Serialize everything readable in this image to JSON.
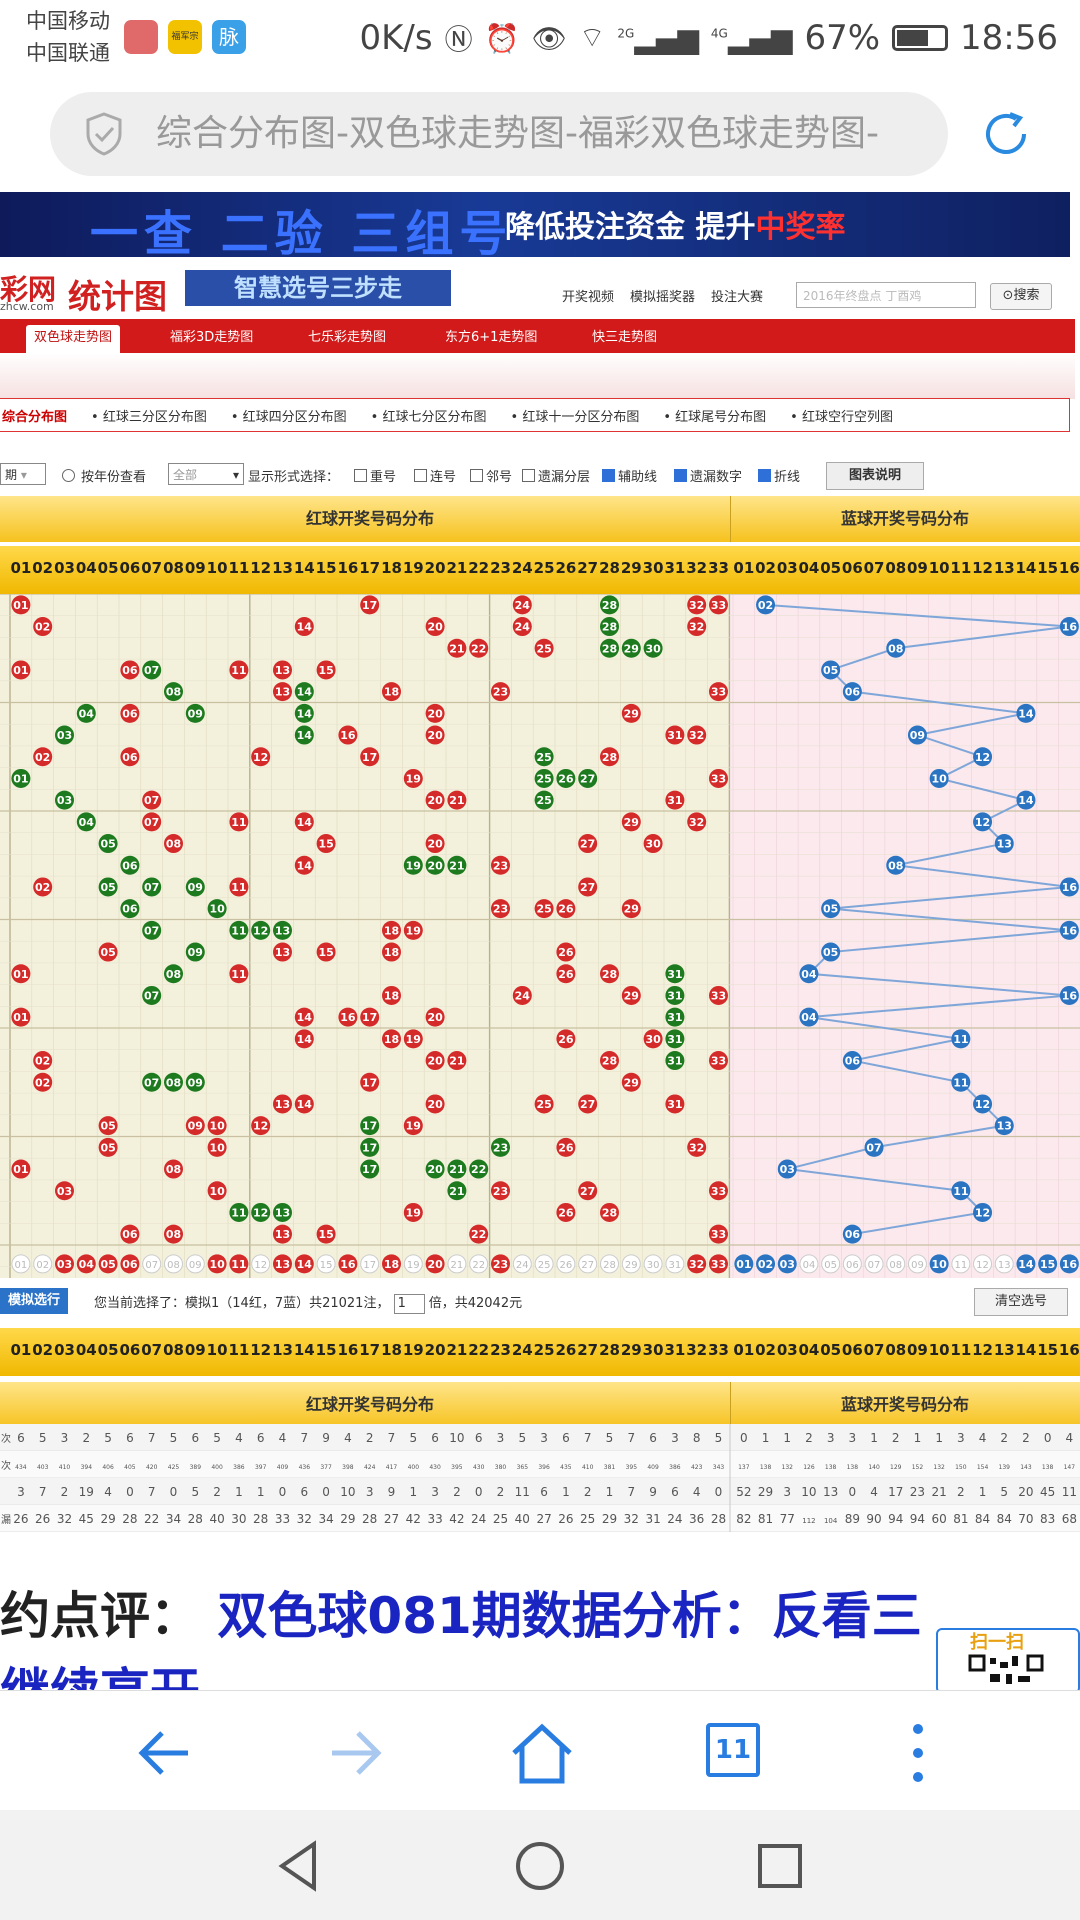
{
  "status_bar": {
    "carrier1": "中国移动",
    "carrier2": "中国联通",
    "app_icon_2": "福军宗",
    "app_icon_3": "脉",
    "speed": "0K/s",
    "icons": [
      "nfc-icon",
      "alarm-icon",
      "eye-icon",
      "wifi-icon",
      "signal-2g-icon",
      "signal-4g-icon"
    ],
    "net_2g": "2G",
    "net_4g": "4G",
    "battery": "67%",
    "battery_level": 0.67,
    "time": "18:56"
  },
  "browser": {
    "url_title": "综合分布图-双色球走势图-福彩双色球走势图-",
    "tab_count": "11"
  },
  "banner": {
    "headline": "一查 二验 三组号",
    "slogan": "降低投注资金 提升",
    "slogan_highlight": "中奖率"
  },
  "site": {
    "logo_main": "彩网",
    "logo_url": "zhcw.com",
    "logo_section": "统计图",
    "ad_text": "智慧选号三步走",
    "top_links": [
      "开奖视频",
      "模拟摇奖器",
      "投注大赛"
    ],
    "search_placeholder": "2016年终盘点 丁酉鸡",
    "search_button": "搜索"
  },
  "nav_tabs": [
    "双色球走势图",
    "福彩3D走势图",
    "七乐彩走势图",
    "东方6+1走势图",
    "快三走势图"
  ],
  "sub_nav": [
    "综合分布图",
    "红球三分区分布图",
    "红球四分区分布图",
    "红球七分区分布图",
    "红球十一分区分布图",
    "红球尾号分布图",
    "红球空行空列图"
  ],
  "filters": {
    "period": "期",
    "by_year": "按年份查看",
    "year_select": "全部",
    "display_label": "显示形式选择：",
    "options": [
      {
        "label": "重号",
        "checked": false
      },
      {
        "label": "连号",
        "checked": false
      },
      {
        "label": "邻号",
        "checked": false
      },
      {
        "label": "遗漏分层",
        "checked": false
      },
      {
        "label": "辅助线",
        "checked": true
      },
      {
        "label": "遗漏数字",
        "checked": true
      },
      {
        "label": "折线",
        "checked": true
      }
    ],
    "chart_button": "图表说明"
  },
  "headers": {
    "red_title": "红球开奖号码分布",
    "blue_title": "蓝球开奖号码分布"
  },
  "red_numbers": [
    "01",
    "02",
    "03",
    "04",
    "05",
    "06",
    "07",
    "08",
    "09",
    "10",
    "11",
    "12",
    "13",
    "14",
    "15",
    "16",
    "17",
    "18",
    "19",
    "20",
    "21",
    "22",
    "23",
    "24",
    "25",
    "26",
    "27",
    "28",
    "29",
    "30",
    "31",
    "32",
    "33"
  ],
  "blue_numbers": [
    "01",
    "02",
    "03",
    "04",
    "05",
    "06",
    "07",
    "08",
    "09",
    "10",
    "11",
    "12",
    "13",
    "14",
    "15",
    "16"
  ],
  "colors": {
    "red_ball": "#d42a2a",
    "green_ball": "#1e7a1e",
    "blue_ball": "#2a74c2",
    "red_zone_bg": "#f3f1dc",
    "blue_zone_bg": "#fbe9ee",
    "line": "#7fa6d8"
  },
  "draws": [
    {
      "red": [
        1,
        17,
        24,
        28,
        32,
        33
      ],
      "green": [
        28
      ],
      "blue": 2
    },
    {
      "red": [
        2,
        14,
        20,
        24,
        28,
        32
      ],
      "green": [
        28
      ],
      "blue": 16
    },
    {
      "red": [
        21,
        22,
        25,
        28,
        29,
        30
      ],
      "green": [
        28,
        29,
        30
      ],
      "blue": 8
    },
    {
      "red": [
        1,
        6,
        7,
        11,
        13,
        15
      ],
      "green": [
        7
      ],
      "blue": 5
    },
    {
      "red": [
        8,
        13,
        14,
        18,
        23,
        33
      ],
      "green": [
        8,
        14
      ],
      "blue": 6
    },
    {
      "red": [
        4,
        6,
        9,
        14,
        20,
        29
      ],
      "green": [
        4,
        9,
        14
      ],
      "blue": 14
    },
    {
      "red": [
        3,
        14,
        16,
        20,
        31,
        32
      ],
      "green": [
        3,
        14
      ],
      "blue": 9
    },
    {
      "red": [
        2,
        6,
        12,
        17,
        25,
        28
      ],
      "green": [
        25
      ],
      "blue": 12
    },
    {
      "red": [
        1,
        19,
        25,
        26,
        27,
        33
      ],
      "green": [
        1,
        25,
        26,
        27
      ],
      "blue": 10
    },
    {
      "red": [
        3,
        7,
        20,
        21,
        25,
        31
      ],
      "green": [
        3,
        25
      ],
      "blue": 14
    },
    {
      "red": [
        4,
        7,
        11,
        14,
        29,
        32
      ],
      "green": [
        4
      ],
      "blue": 12
    },
    {
      "red": [
        5,
        8,
        15,
        20,
        27,
        30
      ],
      "green": [
        5
      ],
      "blue": 13
    },
    {
      "red": [
        6,
        14,
        19,
        20,
        21,
        23
      ],
      "green": [
        6,
        19,
        20,
        21
      ],
      "blue": 8
    },
    {
      "red": [
        2,
        5,
        7,
        9,
        11,
        27
      ],
      "green": [
        5,
        7,
        9
      ],
      "blue": 16
    },
    {
      "red": [
        6,
        10,
        23,
        25,
        26,
        29
      ],
      "green": [
        6,
        10
      ],
      "blue": 5
    },
    {
      "red": [
        7,
        11,
        12,
        13,
        18,
        19
      ],
      "green": [
        7,
        11,
        12,
        13
      ],
      "blue": 16
    },
    {
      "red": [
        5,
        9,
        13,
        15,
        18,
        26
      ],
      "green": [
        9
      ],
      "blue": 5
    },
    {
      "red": [
        1,
        8,
        11,
        26,
        28,
        31
      ],
      "green": [
        8,
        31
      ],
      "blue": 4
    },
    {
      "red": [
        7,
        18,
        24,
        29,
        31,
        33
      ],
      "green": [
        7,
        31
      ],
      "blue": 16
    },
    {
      "red": [
        1,
        14,
        16,
        17,
        20,
        31
      ],
      "green": [
        31
      ],
      "blue": 4
    },
    {
      "red": [
        14,
        18,
        19,
        26,
        30,
        31
      ],
      "green": [
        31
      ],
      "blue": 11
    },
    {
      "red": [
        2,
        20,
        21,
        28,
        31,
        33
      ],
      "green": [
        31
      ],
      "blue": 6
    },
    {
      "red": [
        2,
        7,
        8,
        9,
        17,
        29
      ],
      "green": [
        7,
        8,
        9
      ],
      "blue": 11
    },
    {
      "red": [
        13,
        14,
        20,
        25,
        27,
        31
      ],
      "green": [],
      "blue": 12
    },
    {
      "red": [
        5,
        9,
        10,
        12,
        17,
        19
      ],
      "green": [
        17
      ],
      "blue": 13
    },
    {
      "red": [
        5,
        10,
        17,
        23,
        26,
        32
      ],
      "green": [
        17,
        23
      ],
      "blue": 7
    },
    {
      "red": [
        1,
        8,
        17,
        20,
        21,
        22
      ],
      "green": [
        17,
        20,
        21,
        22
      ],
      "blue": 3
    },
    {
      "red": [
        3,
        10,
        21,
        23,
        27,
        33
      ],
      "green": [
        21
      ],
      "blue": 11
    },
    {
      "red": [
        11,
        12,
        13,
        19,
        26,
        28
      ],
      "green": [
        11,
        12,
        13
      ],
      "blue": 12
    },
    {
      "red": [
        6,
        8,
        13,
        15,
        22,
        33
      ],
      "green": [],
      "blue": 6
    }
  ],
  "bottom_marks": {
    "red_selected": [
      3,
      4,
      5,
      6,
      10,
      11,
      13,
      14,
      16,
      18,
      20,
      23,
      32,
      33
    ],
    "blue_selected": [
      1,
      2,
      3,
      10,
      14,
      15,
      16
    ]
  },
  "selection": {
    "button": "模拟选行",
    "text": "您当前选择了：模拟1（14红，7蓝）共21021注，",
    "multiplier": "1",
    "text2": "倍，共42042元",
    "clear_button": "清空选号"
  },
  "stats_rows": [
    {
      "label": "次",
      "red": [
        6,
        5,
        3,
        2,
        5,
        6,
        7,
        5,
        6,
        5,
        4,
        6,
        4,
        7,
        9,
        4,
        2,
        7,
        5,
        6,
        10,
        6,
        3,
        5,
        3,
        6,
        7,
        5,
        7,
        6,
        3,
        8,
        5
      ],
      "blue": [
        0,
        1,
        1,
        2,
        3,
        3,
        1,
        2,
        1,
        1,
        3,
        4,
        2,
        2,
        0,
        4
      ]
    },
    {
      "label": "次",
      "red": [
        434,
        403,
        410,
        394,
        406,
        405,
        420,
        425,
        389,
        400,
        386,
        397,
        409,
        436,
        377,
        398,
        424,
        417,
        400,
        430,
        395,
        430,
        380,
        365,
        396,
        435,
        410,
        381,
        395,
        409,
        386,
        423,
        343
      ],
      "blue": [
        137,
        138,
        132,
        126,
        138,
        138,
        140,
        129,
        152,
        132,
        150,
        154,
        139,
        143,
        138,
        147
      ]
    },
    {
      "label": "",
      "red": [
        3,
        7,
        2,
        19,
        4,
        0,
        7,
        0,
        5,
        2,
        1,
        1,
        0,
        6,
        0,
        10,
        3,
        9,
        1,
        3,
        2,
        0,
        2,
        11,
        6,
        1,
        2,
        1,
        7,
        9,
        6,
        4,
        0
      ],
      "blue": [
        52,
        29,
        3,
        10,
        13,
        0,
        4,
        17,
        23,
        21,
        2,
        1,
        5,
        20,
        45,
        11
      ]
    },
    {
      "label": "漏",
      "red": [
        26,
        26,
        32,
        45,
        29,
        28,
        22,
        34,
        28,
        40,
        30,
        28,
        33,
        32,
        34,
        29,
        28,
        27,
        42,
        33,
        42,
        24,
        25,
        40,
        27,
        26,
        25,
        29,
        32,
        31,
        24,
        36,
        28
      ],
      "blue": [
        82,
        81,
        77,
        112,
        104,
        89,
        90,
        94,
        94,
        60,
        81,
        84,
        84,
        70,
        83,
        68
      ]
    }
  ],
  "review": {
    "prefix": "约点评：",
    "headline": "双色球081期数据分析：反看三",
    "line2": "继续高开",
    "qr_label": "扫一扫"
  }
}
